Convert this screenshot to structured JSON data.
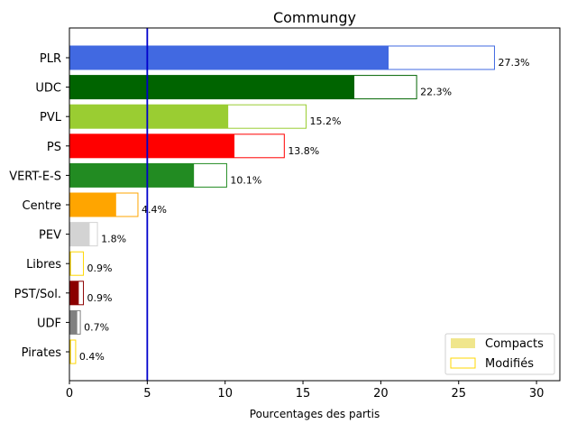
{
  "chart_data": {
    "type": "bar",
    "orientation": "horizontal",
    "stacked_overlay": true,
    "title": "Commungy",
    "xlabel": "Pourcentages des partis",
    "ylabel": "",
    "xlim": [
      0,
      31.5
    ],
    "xticks": [
      0,
      5,
      10,
      15,
      20,
      25,
      30
    ],
    "threshold_line": {
      "value": 5,
      "color": "#0000cc"
    },
    "grid": false,
    "legend": {
      "position": "bottom-right",
      "entries": [
        {
          "label": "Compacts",
          "style": "filled",
          "color": "#f0e68c"
        },
        {
          "label": "Modifiés",
          "style": "outline",
          "color": "#ffd700"
        }
      ]
    },
    "categories": [
      "PLR",
      "UDC",
      "PVL",
      "PS",
      "VERT-E-S",
      "Centre",
      "PEV",
      "Libres",
      "PST/Sol.",
      "UDF",
      "Pirates"
    ],
    "series": [
      {
        "name": "Compacts",
        "values": [
          20.5,
          18.3,
          10.2,
          10.6,
          8.0,
          3.0,
          1.3,
          0.1,
          0.6,
          0.5,
          0.1
        ]
      },
      {
        "name": "Modifiés",
        "values": [
          27.3,
          22.3,
          15.2,
          13.8,
          10.1,
          4.4,
          1.8,
          0.9,
          0.9,
          0.7,
          0.4
        ]
      }
    ],
    "data_labels": [
      "27.3%",
      "22.3%",
      "15.2%",
      "13.8%",
      "10.1%",
      "4.4%",
      "1.8%",
      "0.9%",
      "0.9%",
      "0.7%",
      "0.4%"
    ],
    "colors": [
      "#4169e1",
      "#006400",
      "#9acd32",
      "#ff0000",
      "#228b22",
      "#ffa500",
      "#d3d3d3",
      "#ffd700",
      "#8b0000",
      "#808080",
      "#ffd700"
    ]
  }
}
